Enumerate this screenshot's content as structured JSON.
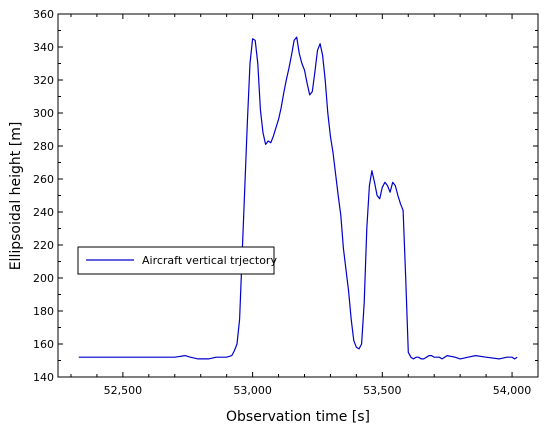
{
  "chart_data": {
    "type": "line",
    "xlabel": "Observation time [s]",
    "ylabel": "Ellipsoidal height [m]",
    "xlim": [
      52250,
      54100
    ],
    "ylim": [
      140,
      360
    ],
    "x_ticks": [
      52500,
      53000,
      53500,
      54000
    ],
    "x_tick_labels": [
      "52,500",
      "53,000",
      "53,500",
      "54,000"
    ],
    "y_ticks": [
      140,
      160,
      180,
      200,
      220,
      240,
      260,
      280,
      300,
      320,
      340,
      360
    ],
    "y_tick_labels": [
      "140",
      "160",
      "180",
      "200",
      "220",
      "240",
      "260",
      "280",
      "300",
      "320",
      "340",
      "360"
    ],
    "grid": false,
    "legend_position": "middle-left",
    "line_color": "#0000cc",
    "series": [
      {
        "name": "Aircraft vertical trjectory",
        "x": [
          52330,
          52500,
          52700,
          52740,
          52760,
          52790,
          52830,
          52860,
          52900,
          52920,
          52930,
          52940,
          52950,
          52960,
          52970,
          52980,
          52990,
          53000,
          53010,
          53020,
          53030,
          53040,
          53050,
          53060,
          53070,
          53080,
          53090,
          53100,
          53110,
          53120,
          53130,
          53140,
          53150,
          53160,
          53170,
          53180,
          53190,
          53200,
          53210,
          53220,
          53230,
          53240,
          53250,
          53260,
          53270,
          53280,
          53290,
          53300,
          53310,
          53320,
          53330,
          53340,
          53350,
          53360,
          53370,
          53380,
          53390,
          53400,
          53410,
          53420,
          53430,
          53440,
          53450,
          53460,
          53470,
          53480,
          53490,
          53500,
          53510,
          53520,
          53530,
          53540,
          53550,
          53560,
          53570,
          53580,
          53590,
          53600,
          53610,
          53620,
          53630,
          53640,
          53650,
          53660,
          53670,
          53680,
          53690,
          53700,
          53710,
          53720,
          53730,
          53750,
          53780,
          53800,
          53830,
          53860,
          53900,
          53950,
          53980,
          54000,
          54010,
          54020
        ],
        "y": [
          152,
          152,
          152,
          153,
          152,
          151,
          151,
          152,
          152,
          153,
          156,
          160,
          175,
          215,
          255,
          295,
          330,
          345,
          344,
          330,
          302,
          288,
          281,
          283,
          282,
          286,
          291,
          296,
          303,
          312,
          320,
          327,
          335,
          344,
          346,
          336,
          330,
          326,
          318,
          311,
          313,
          325,
          338,
          342,
          335,
          320,
          300,
          286,
          276,
          263,
          250,
          238,
          218,
          205,
          192,
          175,
          162,
          158,
          157,
          160,
          185,
          230,
          256,
          265,
          258,
          250,
          248,
          255,
          258,
          256,
          252,
          258,
          256,
          250,
          245,
          241,
          200,
          155,
          152,
          151,
          152,
          152,
          151,
          151,
          152,
          153,
          153,
          152,
          152,
          152,
          151,
          153,
          152,
          151,
          152,
          153,
          152,
          151,
          152,
          152,
          151,
          152
        ]
      }
    ]
  }
}
